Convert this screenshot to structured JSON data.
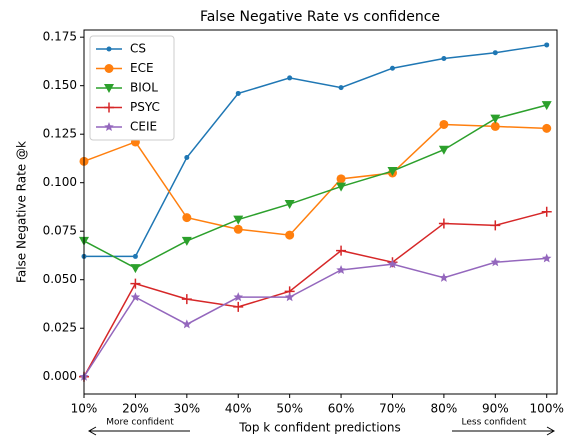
{
  "chart_data": {
    "type": "line",
    "title": "False Negative Rate vs confidence",
    "xlabel": "Top k confident predictions",
    "ylabel": "False Negative Rate @k",
    "x": [
      10,
      20,
      30,
      40,
      50,
      60,
      70,
      80,
      90,
      100
    ],
    "xlim": [
      10,
      102
    ],
    "xticks": [
      {
        "value": 10,
        "label": "10%"
      },
      {
        "value": 20,
        "label": "20%"
      },
      {
        "value": 30,
        "label": "30%"
      },
      {
        "value": 40,
        "label": "40%"
      },
      {
        "value": 50,
        "label": "50%"
      },
      {
        "value": 60,
        "label": "60%"
      },
      {
        "value": 70,
        "label": "70%"
      },
      {
        "value": 80,
        "label": "80%"
      },
      {
        "value": 90,
        "label": "90%"
      },
      {
        "value": 100,
        "label": "100%"
      }
    ],
    "ylim": [
      -0.0089,
      0.1787
    ],
    "yticks": [
      {
        "value": 0,
        "label": "0.000"
      },
      0.025,
      {
        "value": 0.05,
        "label": "0.050"
      },
      0.075,
      {
        "value": 0.1,
        "label": "0.100"
      },
      0.125,
      {
        "value": 0.15,
        "label": "0.150"
      },
      0.175
    ],
    "legend": "upper left",
    "series": [
      {
        "name": "CS",
        "color": "#1f77b4",
        "marker": "circle",
        "values": [
          0.062,
          0.062,
          0.113,
          0.146,
          0.154,
          0.149,
          0.159,
          0.164,
          0.167,
          0.171
        ]
      },
      {
        "name": "ECE",
        "color": "#ff7f0e",
        "marker": "big-circle",
        "values": [
          0.111,
          0.121,
          0.082,
          0.076,
          0.073,
          0.102,
          0.105,
          0.13,
          0.129,
          0.128
        ]
      },
      {
        "name": "BIOL",
        "color": "#2ca02c",
        "marker": "triangle-down",
        "values": [
          0.07,
          0.056,
          0.07,
          0.081,
          0.089,
          0.098,
          0.106,
          0.117,
          0.133,
          0.14
        ]
      },
      {
        "name": "PSYC",
        "color": "#d62728",
        "marker": "plus",
        "values": [
          0.0,
          0.048,
          0.04,
          0.036,
          0.044,
          0.065,
          0.059,
          0.079,
          0.078,
          0.085
        ]
      },
      {
        "name": "CEIE",
        "color": "#9467bd",
        "marker": "star",
        "values": [
          0.0,
          0.041,
          0.027,
          0.041,
          0.041,
          0.055,
          0.058,
          0.051,
          0.059,
          0.061
        ]
      }
    ],
    "annotations": [
      "More confident",
      "Less confident"
    ]
  }
}
